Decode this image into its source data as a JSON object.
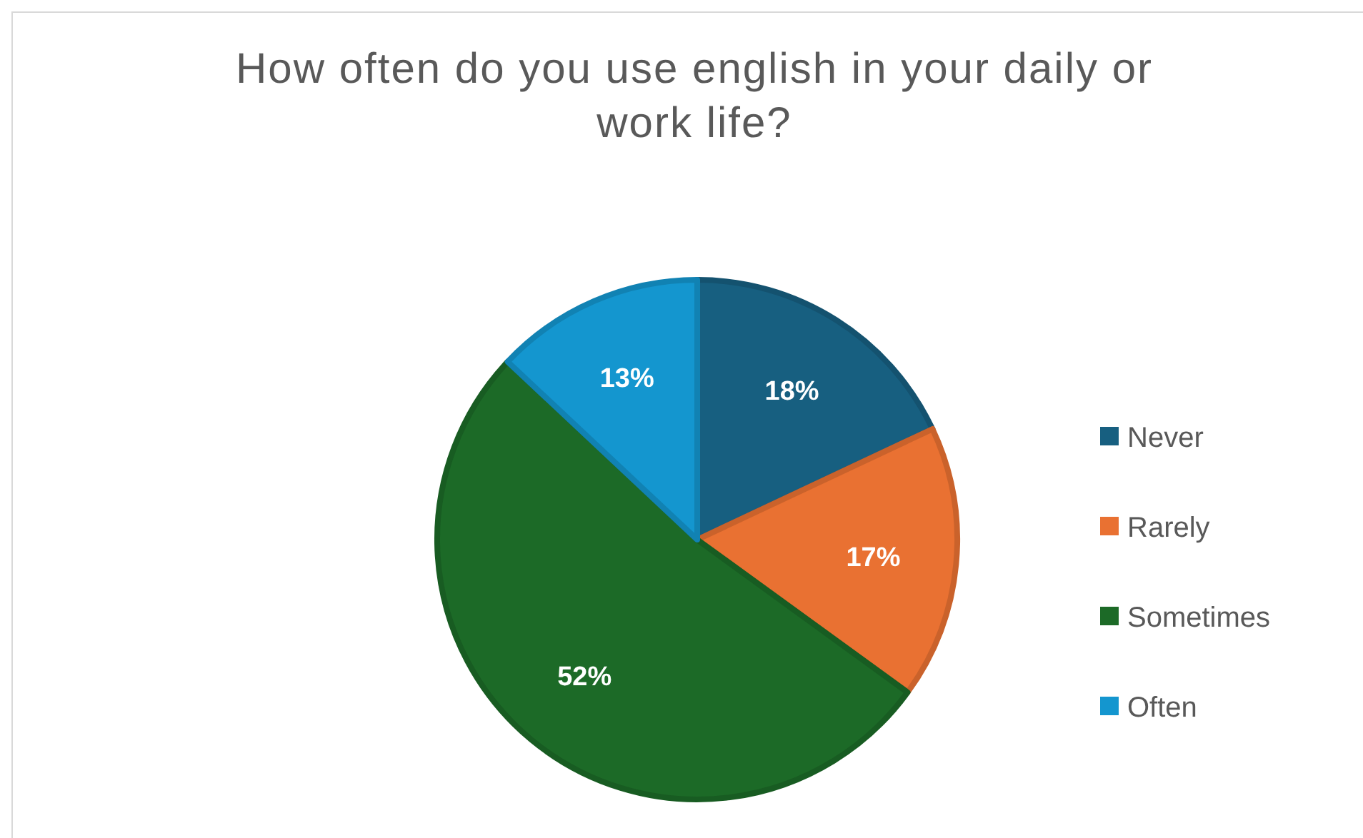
{
  "chart_data": {
    "type": "pie",
    "title": "How often do you use english in your daily or work life?",
    "categories": [
      "Never",
      "Rarely",
      "Sometimes",
      "Often"
    ],
    "values": [
      18,
      17,
      52,
      13
    ],
    "colors": [
      "#175f80",
      "#e97132",
      "#1c6a27",
      "#1496cf"
    ],
    "value_labels": [
      "18%",
      "17%",
      "52%",
      "13%"
    ],
    "legend": "right"
  }
}
